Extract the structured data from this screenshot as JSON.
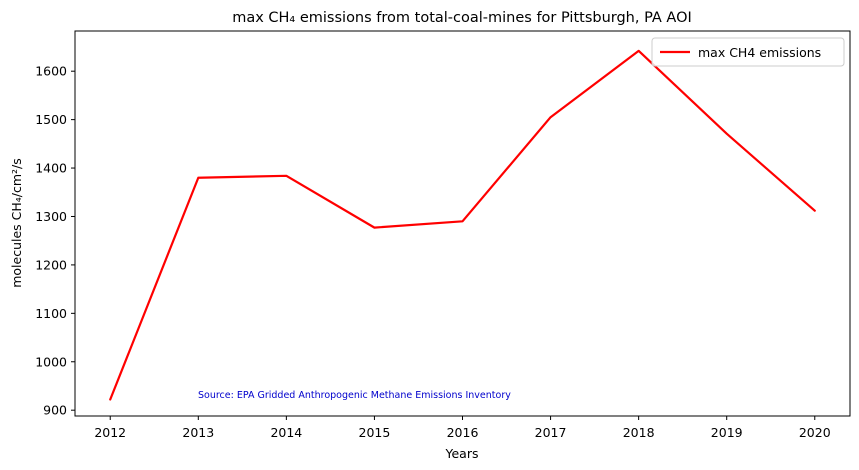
{
  "chart_data": {
    "type": "line",
    "title": "max CH₄ emissions from total-coal-mines for Pittsburgh, PA AOI",
    "xlabel": "Years",
    "ylabel": "molecules CH₄/cm²/s",
    "x": [
      2012,
      2013,
      2014,
      2015,
      2016,
      2017,
      2018,
      2019,
      2020
    ],
    "x_tick_labels": [
      "2012",
      "2013",
      "2014",
      "2015",
      "2016",
      "2017",
      "2018",
      "2019",
      "2020"
    ],
    "xlim": [
      2011.6,
      2020.4
    ],
    "ylim": [
      888,
      1683
    ],
    "y_ticks": [
      900,
      1000,
      1100,
      1200,
      1300,
      1400,
      1500,
      1600
    ],
    "y_tick_labels": [
      "900",
      "1000",
      "1100",
      "1200",
      "1300",
      "1400",
      "1500",
      "1600"
    ],
    "series": [
      {
        "name": "max CH4 emissions",
        "color": "#ff0000",
        "values": [
          922,
          1380,
          1384,
          1277,
          1290,
          1505,
          1642,
          1471,
          1312
        ]
      }
    ],
    "grid": false,
    "legend": "top-right",
    "annotation": "Source: EPA Gridded Anthropogenic Methane Emissions Inventory"
  }
}
